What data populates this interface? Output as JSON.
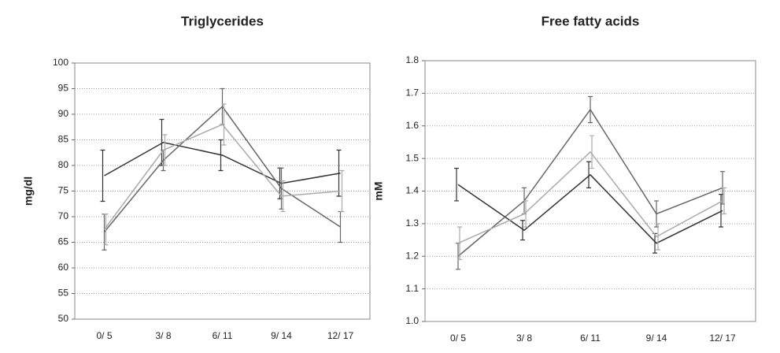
{
  "chart_data": [
    {
      "type": "line",
      "title": "Triglycerides",
      "y_label": "mg/dl",
      "categories": [
        "0/ 5",
        "3/ 8",
        "6/ 11",
        "9/ 14",
        "12/ 17"
      ],
      "series": [
        {
          "color": "#333333",
          "values": [
            78,
            84.5,
            82,
            76.5,
            78.5
          ],
          "errors": [
            5,
            4.5,
            3,
            3,
            4.5
          ]
        },
        {
          "color": "#666666",
          "values": [
            67,
            81,
            91.5,
            75.5,
            68
          ],
          "errors": [
            3.5,
            2,
            3.5,
            4,
            3
          ]
        },
        {
          "color": "#aaaaaa",
          "values": [
            67.5,
            83,
            88,
            74,
            75
          ],
          "errors": [
            3,
            3,
            4,
            3,
            4
          ]
        }
      ],
      "ylim": [
        50,
        100
      ],
      "yticks": [
        50,
        55,
        60,
        65,
        70,
        75,
        80,
        85,
        90,
        95,
        100
      ],
      "grid": true
    },
    {
      "type": "line",
      "title": "Free fatty acids",
      "y_label": "mM",
      "categories": [
        "0/ 5",
        "3/ 8",
        "6/ 11",
        "9/ 14",
        "12/ 17"
      ],
      "series": [
        {
          "color": "#333333",
          "values": [
            1.42,
            1.28,
            1.45,
            1.24,
            1.34
          ],
          "errors": [
            0.05,
            0.03,
            0.04,
            0.03,
            0.05
          ]
        },
        {
          "color": "#666666",
          "values": [
            1.2,
            1.37,
            1.65,
            1.33,
            1.41
          ],
          "errors": [
            0.04,
            0.04,
            0.04,
            0.04,
            0.05
          ]
        },
        {
          "color": "#aaaaaa",
          "values": [
            1.24,
            1.33,
            1.52,
            1.26,
            1.37
          ],
          "errors": [
            0.05,
            0.04,
            0.05,
            0.04,
            0.04
          ]
        }
      ],
      "ylim": [
        1,
        1.8
      ],
      "yticks": [
        {
          "value": 1,
          "label": "1.0"
        },
        1.1,
        1.2,
        1.3,
        1.4,
        1.5,
        1.6,
        1.7,
        1.8
      ],
      "grid": true
    }
  ]
}
